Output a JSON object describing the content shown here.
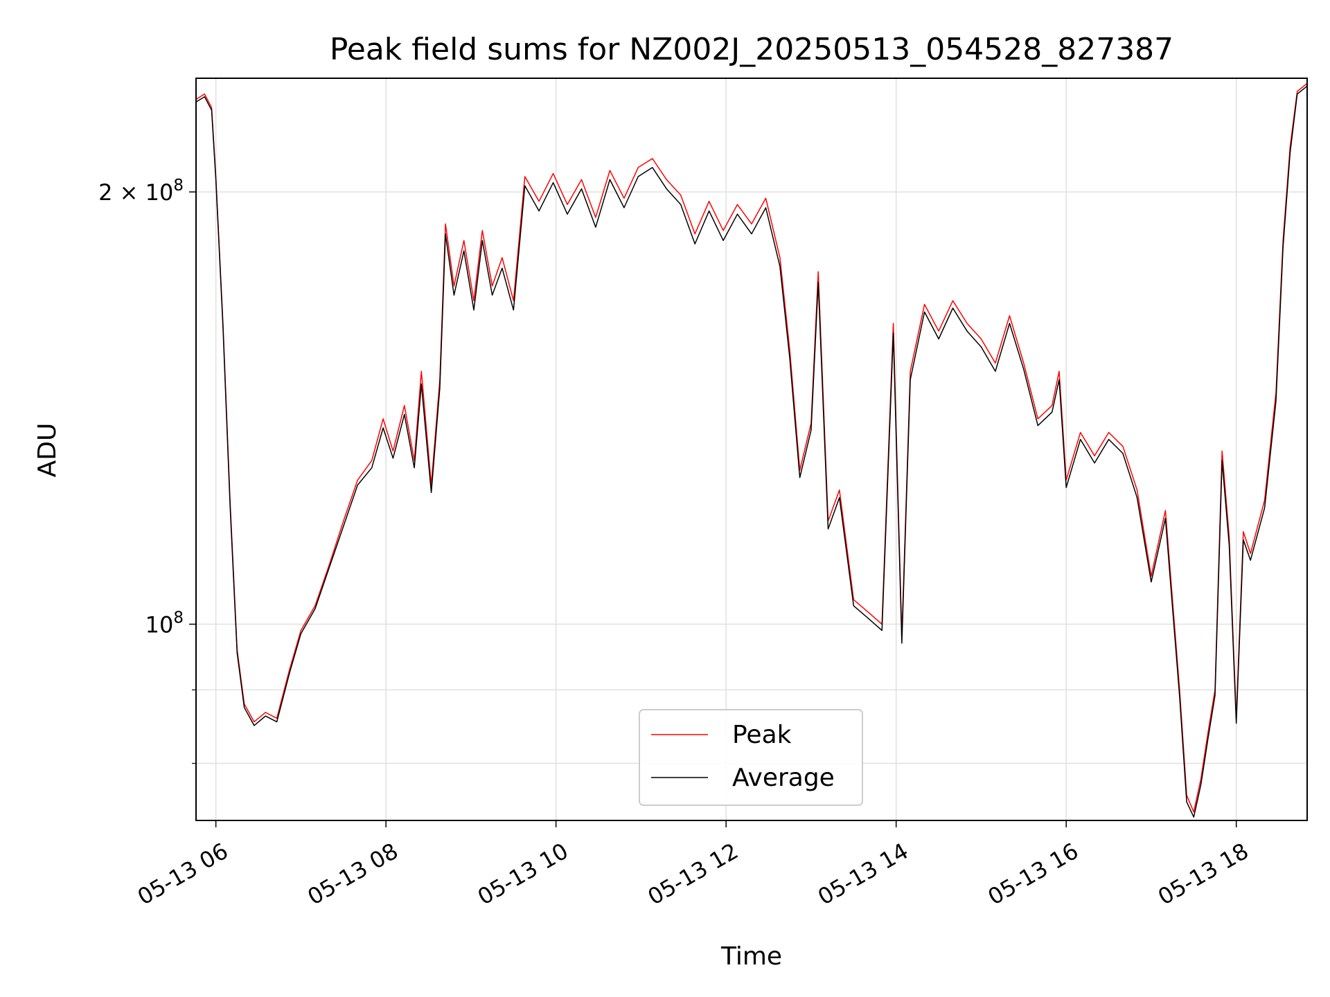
{
  "chart_data": {
    "type": "line",
    "title": "Peak field sums for NZ002J_20250513_054528_827387",
    "xlabel": "Time",
    "ylabel": "ADU",
    "yscale": "log",
    "grid": true,
    "legend_placement": "lower-center",
    "xlim": [
      "2025-05-13 05:46",
      "2025-05-13 18:50"
    ],
    "ylim": [
      73000000,
      240000000
    ],
    "x_ticks": [
      {
        "label": "05-13 06",
        "value": "2025-05-13 06:00"
      },
      {
        "label": "05-13 08",
        "value": "2025-05-13 08:00"
      },
      {
        "label": "05-13 10",
        "value": "2025-05-13 10:00"
      },
      {
        "label": "05-13 12",
        "value": "2025-05-13 12:00"
      },
      {
        "label": "05-13 14",
        "value": "2025-05-13 14:00"
      },
      {
        "label": "05-13 16",
        "value": "2025-05-13 16:00"
      },
      {
        "label": "05-13 18",
        "value": "2025-05-13 18:00"
      }
    ],
    "y_major_ticks": [
      {
        "mantissa": "",
        "exponent": "8",
        "value": 100000000
      },
      {
        "mantissa": "2 × ",
        "exponent": "8",
        "value": 200000000
      }
    ],
    "y_minor_ticks": [
      80000000,
      90000000
    ],
    "series": [
      {
        "name": "Peak",
        "color": "#ff0000",
        "points": [
          [
            "2025-05-13 05:46",
            232000000
          ],
          [
            "2025-05-13 05:52",
            234000000
          ],
          [
            "2025-05-13 05:57",
            229000000
          ],
          [
            "2025-05-13 06:00",
            205000000
          ],
          [
            "2025-05-13 06:05",
            162000000
          ],
          [
            "2025-05-13 06:10",
            122000000
          ],
          [
            "2025-05-13 06:15",
            96000000
          ],
          [
            "2025-05-13 06:20",
            88000000
          ],
          [
            "2025-05-13 06:27",
            85500000
          ],
          [
            "2025-05-13 06:35",
            86800000
          ],
          [
            "2025-05-13 06:43",
            86000000
          ],
          [
            "2025-05-13 06:52",
            93000000
          ],
          [
            "2025-05-13 07:00",
            99000000
          ],
          [
            "2025-05-13 07:10",
            103000000
          ],
          [
            "2025-05-13 07:20",
            110000000
          ],
          [
            "2025-05-13 07:30",
            118000000
          ],
          [
            "2025-05-13 07:40",
            126000000
          ],
          [
            "2025-05-13 07:50",
            130000000
          ],
          [
            "2025-05-13 07:58",
            139000000
          ],
          [
            "2025-05-13 08:05",
            132000000
          ],
          [
            "2025-05-13 08:13",
            142000000
          ],
          [
            "2025-05-13 08:20",
            130000000
          ],
          [
            "2025-05-13 08:25",
            150000000
          ],
          [
            "2025-05-13 08:32",
            125000000
          ],
          [
            "2025-05-13 08:38",
            148000000
          ],
          [
            "2025-05-13 08:42",
            190000000
          ],
          [
            "2025-05-13 08:48",
            172000000
          ],
          [
            "2025-05-13 08:55",
            185000000
          ],
          [
            "2025-05-13 09:02",
            168000000
          ],
          [
            "2025-05-13 09:08",
            188000000
          ],
          [
            "2025-05-13 09:15",
            172000000
          ],
          [
            "2025-05-13 09:22",
            180000000
          ],
          [
            "2025-05-13 09:30",
            168000000
          ],
          [
            "2025-05-13 09:38",
            205000000
          ],
          [
            "2025-05-13 09:48",
            197000000
          ],
          [
            "2025-05-13 09:58",
            206000000
          ],
          [
            "2025-05-13 10:08",
            196000000
          ],
          [
            "2025-05-13 10:18",
            204000000
          ],
          [
            "2025-05-13 10:28",
            192000000
          ],
          [
            "2025-05-13 10:38",
            207000000
          ],
          [
            "2025-05-13 10:48",
            198000000
          ],
          [
            "2025-05-13 10:58",
            208000000
          ],
          [
            "2025-05-13 11:08",
            211000000
          ],
          [
            "2025-05-13 11:18",
            204000000
          ],
          [
            "2025-05-13 11:28",
            199000000
          ],
          [
            "2025-05-13 11:38",
            187000000
          ],
          [
            "2025-05-13 11:48",
            197000000
          ],
          [
            "2025-05-13 11:58",
            188000000
          ],
          [
            "2025-05-13 12:08",
            196000000
          ],
          [
            "2025-05-13 12:18",
            190000000
          ],
          [
            "2025-05-13 12:28",
            198000000
          ],
          [
            "2025-05-13 12:38",
            180000000
          ],
          [
            "2025-05-13 12:45",
            155000000
          ],
          [
            "2025-05-13 12:52",
            128000000
          ],
          [
            "2025-05-13 13:00",
            138000000
          ],
          [
            "2025-05-13 13:05",
            176000000
          ],
          [
            "2025-05-13 13:12",
            118000000
          ],
          [
            "2025-05-13 13:20",
            124000000
          ],
          [
            "2025-05-13 13:30",
            104000000
          ],
          [
            "2025-05-13 13:40",
            102000000
          ],
          [
            "2025-05-13 13:50",
            100000000
          ],
          [
            "2025-05-13 13:58",
            162000000
          ],
          [
            "2025-05-13 14:04",
            98000000
          ],
          [
            "2025-05-13 14:10",
            150000000
          ],
          [
            "2025-05-13 14:20",
            167000000
          ],
          [
            "2025-05-13 14:30",
            160000000
          ],
          [
            "2025-05-13 14:40",
            168000000
          ],
          [
            "2025-05-13 14:50",
            162000000
          ],
          [
            "2025-05-13 15:00",
            158000000
          ],
          [
            "2025-05-13 15:10",
            152000000
          ],
          [
            "2025-05-13 15:20",
            164000000
          ],
          [
            "2025-05-13 15:30",
            152000000
          ],
          [
            "2025-05-13 15:40",
            139000000
          ],
          [
            "2025-05-13 15:50",
            142000000
          ],
          [
            "2025-05-13 15:55",
            150000000
          ],
          [
            "2025-05-13 16:00",
            126000000
          ],
          [
            "2025-05-13 16:10",
            136000000
          ],
          [
            "2025-05-13 16:20",
            131000000
          ],
          [
            "2025-05-13 16:30",
            136000000
          ],
          [
            "2025-05-13 16:40",
            133000000
          ],
          [
            "2025-05-13 16:50",
            124000000
          ],
          [
            "2025-05-13 17:00",
            108000000
          ],
          [
            "2025-05-13 17:10",
            120000000
          ],
          [
            "2025-05-13 17:20",
            90000000
          ],
          [
            "2025-05-13 17:25",
            76000000
          ],
          [
            "2025-05-13 17:30",
            74000000
          ],
          [
            "2025-05-13 17:35",
            78000000
          ],
          [
            "2025-05-13 17:40",
            84000000
          ],
          [
            "2025-05-13 17:45",
            90000000
          ],
          [
            "2025-05-13 17:50",
            132000000
          ],
          [
            "2025-05-13 17:55",
            115000000
          ],
          [
            "2025-05-13 18:00",
            86000000
          ],
          [
            "2025-05-13 18:05",
            116000000
          ],
          [
            "2025-05-13 18:10",
            112000000
          ],
          [
            "2025-05-13 18:20",
            122000000
          ],
          [
            "2025-05-13 18:28",
            145000000
          ],
          [
            "2025-05-13 18:33",
            185000000
          ],
          [
            "2025-05-13 18:38",
            215000000
          ],
          [
            "2025-05-13 18:43",
            235000000
          ],
          [
            "2025-05-13 18:50",
            238000000
          ]
        ]
      },
      {
        "name": "Average",
        "color": "#000000",
        "points": [
          [
            "2025-05-13 05:46",
            231000000
          ],
          [
            "2025-05-13 05:52",
            233000000
          ],
          [
            "2025-05-13 05:57",
            228000000
          ],
          [
            "2025-05-13 06:00",
            204000000
          ],
          [
            "2025-05-13 06:05",
            161000000
          ],
          [
            "2025-05-13 06:10",
            121000000
          ],
          [
            "2025-05-13 06:15",
            95500000
          ],
          [
            "2025-05-13 06:20",
            87500000
          ],
          [
            "2025-05-13 06:27",
            85000000
          ],
          [
            "2025-05-13 06:35",
            86300000
          ],
          [
            "2025-05-13 06:43",
            85500000
          ],
          [
            "2025-05-13 06:52",
            92500000
          ],
          [
            "2025-05-13 07:00",
            98500000
          ],
          [
            "2025-05-13 07:10",
            102500000
          ],
          [
            "2025-05-13 07:20",
            109500000
          ],
          [
            "2025-05-13 07:30",
            117000000
          ],
          [
            "2025-05-13 07:40",
            125000000
          ],
          [
            "2025-05-13 07:50",
            128500000
          ],
          [
            "2025-05-13 07:58",
            137000000
          ],
          [
            "2025-05-13 08:05",
            130500000
          ],
          [
            "2025-05-13 08:13",
            140000000
          ],
          [
            "2025-05-13 08:20",
            128500000
          ],
          [
            "2025-05-13 08:25",
            147000000
          ],
          [
            "2025-05-13 08:32",
            123500000
          ],
          [
            "2025-05-13 08:38",
            146000000
          ],
          [
            "2025-05-13 08:42",
            187000000
          ],
          [
            "2025-05-13 08:48",
            169500000
          ],
          [
            "2025-05-13 08:55",
            182000000
          ],
          [
            "2025-05-13 09:02",
            165500000
          ],
          [
            "2025-05-13 09:08",
            185000000
          ],
          [
            "2025-05-13 09:15",
            169500000
          ],
          [
            "2025-05-13 09:22",
            177000000
          ],
          [
            "2025-05-13 09:30",
            165500000
          ],
          [
            "2025-05-13 09:38",
            202000000
          ],
          [
            "2025-05-13 09:48",
            194000000
          ],
          [
            "2025-05-13 09:58",
            203000000
          ],
          [
            "2025-05-13 10:08",
            193000000
          ],
          [
            "2025-05-13 10:18",
            201000000
          ],
          [
            "2025-05-13 10:28",
            189000000
          ],
          [
            "2025-05-13 10:38",
            204000000
          ],
          [
            "2025-05-13 10:48",
            195000000
          ],
          [
            "2025-05-13 10:58",
            205000000
          ],
          [
            "2025-05-13 11:08",
            208000000
          ],
          [
            "2025-05-13 11:18",
            201000000
          ],
          [
            "2025-05-13 11:28",
            196000000
          ],
          [
            "2025-05-13 11:38",
            184000000
          ],
          [
            "2025-05-13 11:48",
            194000000
          ],
          [
            "2025-05-13 11:58",
            185000000
          ],
          [
            "2025-05-13 12:08",
            193000000
          ],
          [
            "2025-05-13 12:18",
            187000000
          ],
          [
            "2025-05-13 12:28",
            195000000
          ],
          [
            "2025-05-13 12:38",
            177500000
          ],
          [
            "2025-05-13 12:45",
            153000000
          ],
          [
            "2025-05-13 12:52",
            126500000
          ],
          [
            "2025-05-13 13:00",
            136500000
          ],
          [
            "2025-05-13 13:05",
            173000000
          ],
          [
            "2025-05-13 13:12",
            116500000
          ],
          [
            "2025-05-13 13:20",
            122500000
          ],
          [
            "2025-05-13 13:30",
            103000000
          ],
          [
            "2025-05-13 13:40",
            101000000
          ],
          [
            "2025-05-13 13:50",
            99000000
          ],
          [
            "2025-05-13 13:58",
            159500000
          ],
          [
            "2025-05-13 14:04",
            97000000
          ],
          [
            "2025-05-13 14:10",
            148000000
          ],
          [
            "2025-05-13 14:20",
            165000000
          ],
          [
            "2025-05-13 14:30",
            158000000
          ],
          [
            "2025-05-13 14:40",
            166000000
          ],
          [
            "2025-05-13 14:50",
            160000000
          ],
          [
            "2025-05-13 15:00",
            156000000
          ],
          [
            "2025-05-13 15:10",
            150000000
          ],
          [
            "2025-05-13 15:20",
            162000000
          ],
          [
            "2025-05-13 15:30",
            150500000
          ],
          [
            "2025-05-13 15:40",
            137500000
          ],
          [
            "2025-05-13 15:50",
            140500000
          ],
          [
            "2025-05-13 15:55",
            148000000
          ],
          [
            "2025-05-13 16:00",
            124500000
          ],
          [
            "2025-05-13 16:10",
            134500000
          ],
          [
            "2025-05-13 16:20",
            129500000
          ],
          [
            "2025-05-13 16:30",
            134500000
          ],
          [
            "2025-05-13 16:40",
            131500000
          ],
          [
            "2025-05-13 16:50",
            122500000
          ],
          [
            "2025-05-13 17:00",
            107000000
          ],
          [
            "2025-05-13 17:10",
            118500000
          ],
          [
            "2025-05-13 17:20",
            89000000
          ],
          [
            "2025-05-13 17:25",
            75200000
          ],
          [
            "2025-05-13 17:30",
            73400000
          ],
          [
            "2025-05-13 17:35",
            77300000
          ],
          [
            "2025-05-13 17:40",
            83200000
          ],
          [
            "2025-05-13 17:45",
            89200000
          ],
          [
            "2025-05-13 17:50",
            130000000
          ],
          [
            "2025-05-13 17:55",
            113500000
          ],
          [
            "2025-05-13 18:00",
            85300000
          ],
          [
            "2025-05-13 18:05",
            114500000
          ],
          [
            "2025-05-13 18:10",
            110800000
          ],
          [
            "2025-05-13 18:20",
            120500000
          ],
          [
            "2025-05-13 18:28",
            143000000
          ],
          [
            "2025-05-13 18:33",
            183000000
          ],
          [
            "2025-05-13 18:38",
            213000000
          ],
          [
            "2025-05-13 18:43",
            234000000
          ],
          [
            "2025-05-13 18:50",
            237000000
          ]
        ]
      }
    ]
  }
}
